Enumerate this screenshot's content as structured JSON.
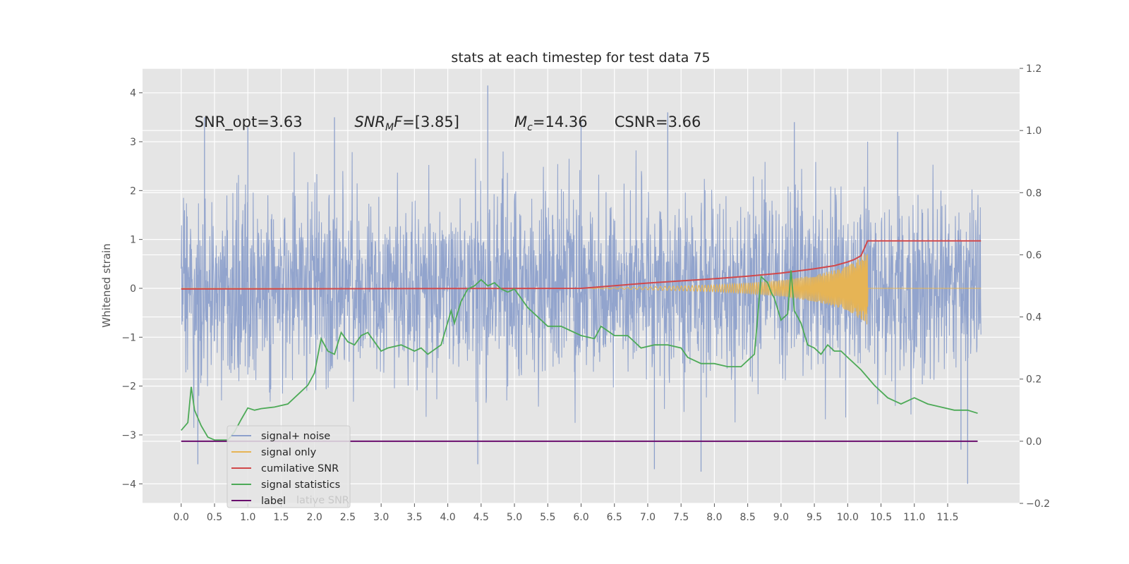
{
  "chart_data": {
    "type": "line",
    "title": "stats at each timestep for test data 75",
    "xlabel": "",
    "ylabel": "Whitened strain",
    "y2label": "",
    "xlim": [
      -0.58,
      12.58
    ],
    "ylim": [
      -4.4,
      4.5
    ],
    "y2lim": [
      -0.2,
      1.2
    ],
    "xticks": [
      0.0,
      0.5,
      1.0,
      1.5,
      2.0,
      2.5,
      3.0,
      3.5,
      4.0,
      4.5,
      5.0,
      5.5,
      6.0,
      6.5,
      7.0,
      7.5,
      8.0,
      8.5,
      9.0,
      9.5,
      10.0,
      10.5,
      11.0,
      11.5
    ],
    "xtick_labels": [
      "0.0",
      "0.5",
      "1.0",
      "1.5",
      "2.0",
      "2.5",
      "3.0",
      "3.5",
      "4.0",
      "4.5",
      "5.0",
      "5.5",
      "6.0",
      "6.5",
      "7.0",
      "7.5",
      "8.0",
      "8.5",
      "9.0",
      "9.5",
      "10.0",
      "10.5",
      "11.0",
      "11.5"
    ],
    "yticks": [
      4,
      3,
      2,
      1,
      0,
      -1,
      -2,
      -3,
      -4
    ],
    "ytick_labels": [
      "4",
      "3",
      "2",
      "1",
      "0",
      "−1",
      "−2",
      "−3",
      "−4"
    ],
    "y2ticks": [
      1.2,
      1.0,
      0.8,
      0.6,
      0.4,
      0.2,
      0.0,
      -0.2
    ],
    "y2tick_labels": [
      "1.2",
      "1.0",
      "0.8",
      "0.6",
      "0.4",
      "0.2",
      "0.0",
      "−0.2"
    ],
    "grid": true,
    "legend_position": "lower-left",
    "annotations": [
      {
        "text": "SNR_opt=3.63",
        "x": 0.2,
        "y": 3.3
      },
      {
        "text": "SNR_MF=[3.85]",
        "x": 2.6,
        "y": 3.3
      },
      {
        "text": "M_c=14.36",
        "x": 5.0,
        "y": 3.3
      },
      {
        "text": "CSNR=3.66",
        "x": 6.5,
        "y": 3.3
      }
    ],
    "series": [
      {
        "name": "signal+ noise",
        "axis": "left",
        "color": "#8da0cb",
        "style": "dense-noise",
        "x_range": [
          0.0,
          12.0
        ],
        "typical_band": [
          -2.0,
          2.0
        ],
        "notable_spikes": [
          {
            "x": 0.35,
            "y": 3.5
          },
          {
            "x": 0.25,
            "y": -3.6
          },
          {
            "x": 1.0,
            "y": 3.3
          },
          {
            "x": 2.3,
            "y": 3.5
          },
          {
            "x": 4.45,
            "y": -3.6
          },
          {
            "x": 4.6,
            "y": 4.15
          },
          {
            "x": 6.0,
            "y": 3.4
          },
          {
            "x": 7.3,
            "y": 3.6
          },
          {
            "x": 7.8,
            "y": -3.75
          },
          {
            "x": 7.1,
            "y": -3.7
          },
          {
            "x": 9.2,
            "y": 3.4
          },
          {
            "x": 10.75,
            "y": 3.2
          },
          {
            "x": 11.8,
            "y": -4.0
          },
          {
            "x": 11.7,
            "y": -3.3
          }
        ]
      },
      {
        "name": "signal only",
        "axis": "left",
        "color": "#e6b455",
        "style": "chirp",
        "x": [
          0.0,
          6.0,
          7.0,
          8.0,
          8.5,
          9.0,
          9.5,
          10.0,
          10.15,
          10.3,
          12.0
        ],
        "envelope": [
          0.0,
          0.0,
          0.03,
          0.07,
          0.11,
          0.17,
          0.27,
          0.45,
          0.6,
          0.75,
          0.0
        ]
      },
      {
        "name": "cumilative SNR",
        "axis": "right",
        "color": "#d1484a",
        "x": [
          0.0,
          6.0,
          7.0,
          8.0,
          8.5,
          9.0,
          9.5,
          9.8,
          10.0,
          10.1,
          10.2,
          10.3,
          12.0
        ],
        "values": [
          0.49,
          0.492,
          0.509,
          0.523,
          0.531,
          0.541,
          0.555,
          0.565,
          0.577,
          0.585,
          0.597,
          0.645,
          0.645
        ]
      },
      {
        "name": "signal statistics",
        "axis": "right",
        "color": "#4daa57",
        "x": [
          0.0,
          0.1,
          0.15,
          0.2,
          0.3,
          0.4,
          0.5,
          0.7,
          0.8,
          0.9,
          1.0,
          1.1,
          1.2,
          1.4,
          1.6,
          1.8,
          1.9,
          2.0,
          2.1,
          2.2,
          2.3,
          2.4,
          2.5,
          2.6,
          2.7,
          2.8,
          2.9,
          3.0,
          3.1,
          3.3,
          3.5,
          3.6,
          3.7,
          3.9,
          4.05,
          4.1,
          4.2,
          4.3,
          4.4,
          4.5,
          4.6,
          4.7,
          4.8,
          4.9,
          5.0,
          5.2,
          5.5,
          5.7,
          6.0,
          6.2,
          6.3,
          6.5,
          6.7,
          6.9,
          7.1,
          7.3,
          7.5,
          7.6,
          7.8,
          8.0,
          8.2,
          8.4,
          8.6,
          8.65,
          8.7,
          8.8,
          8.85,
          8.9,
          9.0,
          9.1,
          9.15,
          9.2,
          9.25,
          9.3,
          9.4,
          9.5,
          9.6,
          9.7,
          9.8,
          9.9,
          10.0,
          10.2,
          10.4,
          10.6,
          10.8,
          11.0,
          11.2,
          11.4,
          11.6,
          11.8,
          11.95
        ],
        "values": [
          0.035,
          0.06,
          0.175,
          0.1,
          0.05,
          0.013,
          0.004,
          0.004,
          0.03,
          0.07,
          0.107,
          0.1,
          0.105,
          0.11,
          0.12,
          0.16,
          0.18,
          0.22,
          0.33,
          0.29,
          0.28,
          0.35,
          0.32,
          0.31,
          0.34,
          0.35,
          0.32,
          0.29,
          0.3,
          0.31,
          0.29,
          0.3,
          0.28,
          0.31,
          0.42,
          0.38,
          0.45,
          0.49,
          0.5,
          0.52,
          0.5,
          0.51,
          0.49,
          0.48,
          0.49,
          0.43,
          0.37,
          0.37,
          0.34,
          0.33,
          0.37,
          0.34,
          0.34,
          0.3,
          0.31,
          0.31,
          0.3,
          0.27,
          0.25,
          0.25,
          0.24,
          0.24,
          0.28,
          0.4,
          0.53,
          0.51,
          0.48,
          0.46,
          0.39,
          0.41,
          0.55,
          0.42,
          0.4,
          0.38,
          0.31,
          0.3,
          0.28,
          0.31,
          0.29,
          0.29,
          0.27,
          0.23,
          0.18,
          0.14,
          0.12,
          0.14,
          0.12,
          0.11,
          0.1,
          0.1,
          0.09
        ]
      },
      {
        "name": "label",
        "axis": "right",
        "color": "#6a0f6e",
        "x": [
          0.0,
          11.95
        ],
        "values": [
          0.0,
          0.0
        ]
      }
    ],
    "legend": [
      "signal+ noise",
      "signal only",
      "cumilative SNR",
      "signal statistics",
      "label"
    ],
    "legend_ghost_text": "lative SNR"
  }
}
